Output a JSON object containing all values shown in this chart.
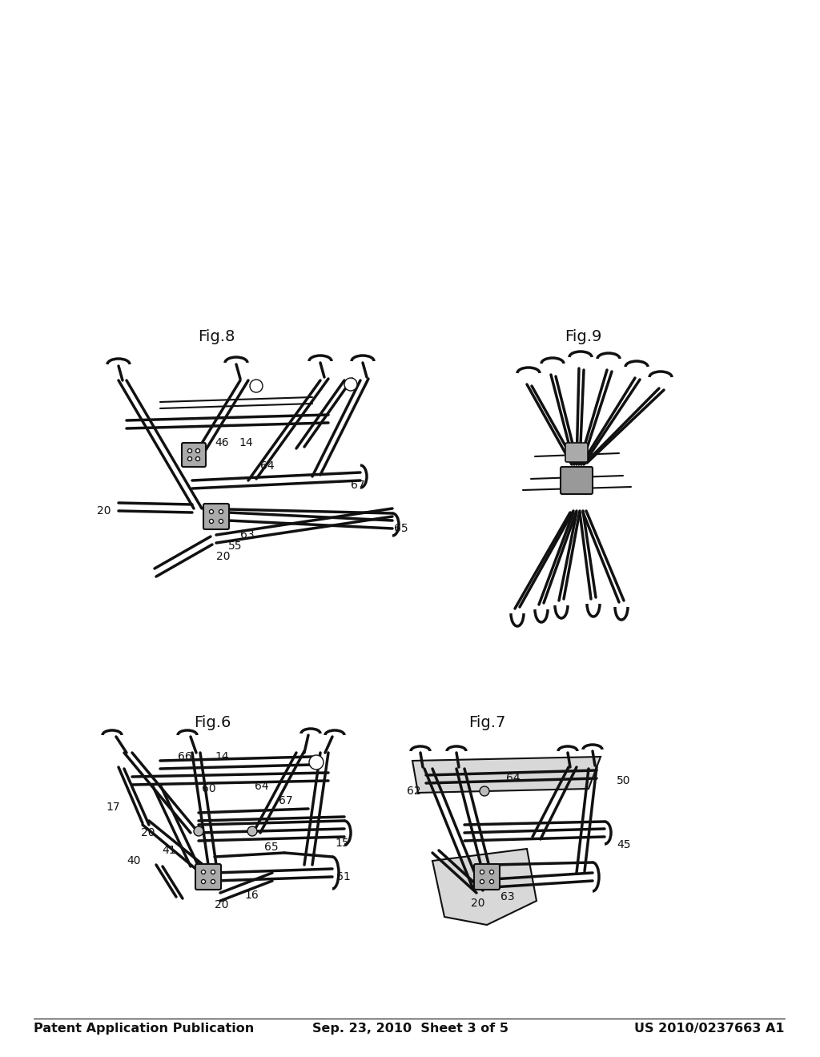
{
  "background_color": "#ffffff",
  "header_left": "Patent Application Publication",
  "header_center": "Sep. 23, 2010  Sheet 3 of 5",
  "header_right": "US 2010/0237663 A1",
  "header_fontsize": 11.5,
  "fig6_label": "Fig.6",
  "fig7_label": "Fig.7",
  "fig8_label": "Fig.8",
  "fig9_label": "Fig.9",
  "fig_label_fontsize": 14,
  "line_color": "#1a1a1a",
  "label_fontsize": 10,
  "dark_color": "#111111",
  "gray_color": "#888888",
  "light_gray": "#cccccc",
  "mid_gray": "#555555"
}
